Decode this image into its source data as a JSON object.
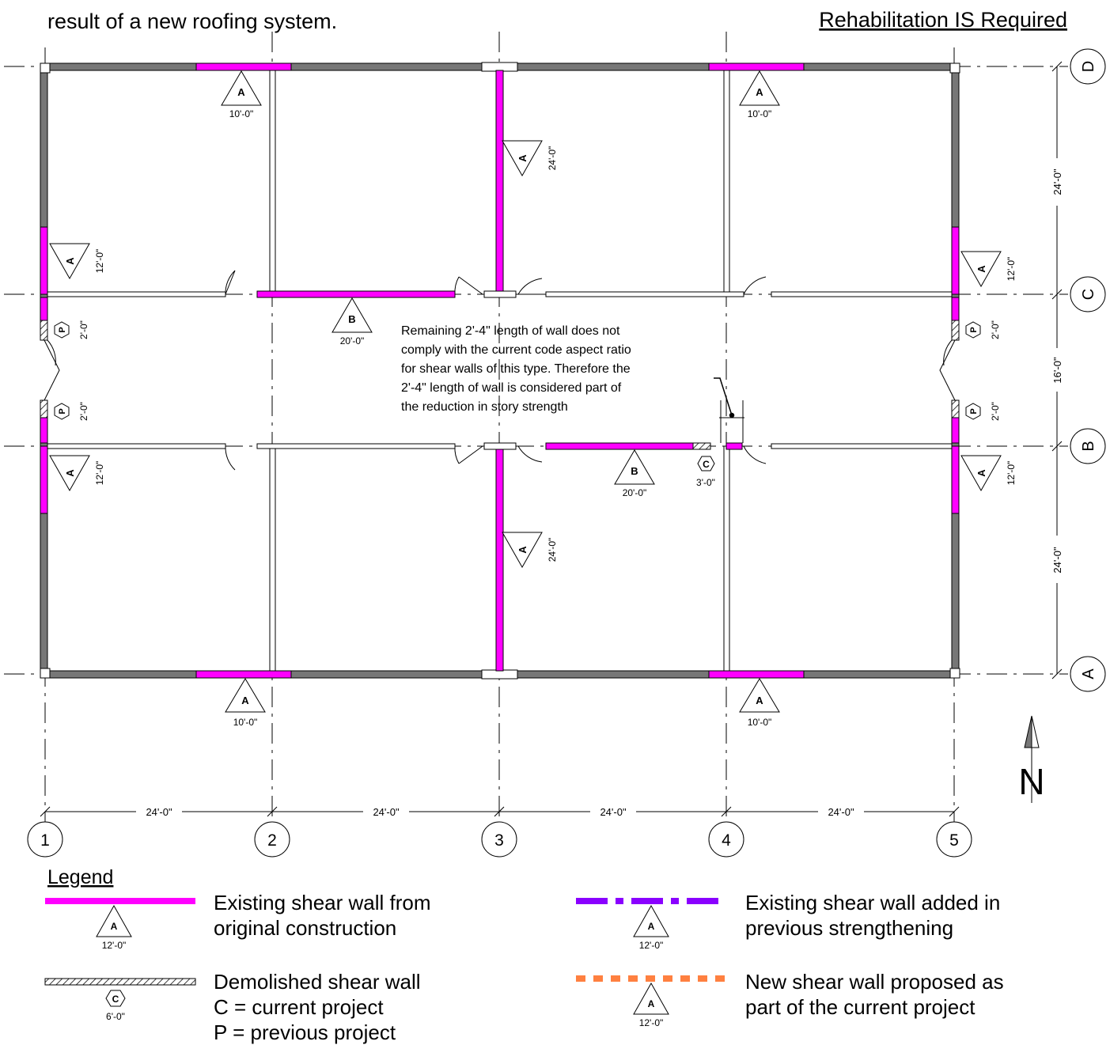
{
  "header": {
    "intro_line": "result of a new roofing system.",
    "status": "Rehabilitation IS Required"
  },
  "grid": {
    "columns": [
      "1",
      "2",
      "3",
      "4",
      "5"
    ],
    "rows": [
      "D",
      "C",
      "B",
      "A"
    ],
    "bay_dims": [
      "24'-0\"",
      "24'-0\"",
      "24'-0\"",
      "24'-0\""
    ],
    "row_dims": [
      "24'-0\"",
      "16'-0\"",
      "24'-0\""
    ]
  },
  "walls": {
    "north_2": {
      "tag": "A",
      "length": "10'-0\""
    },
    "north_4": {
      "tag": "A",
      "length": "10'-0\""
    },
    "south_2": {
      "tag": "A",
      "length": "10'-0\""
    },
    "south_4": {
      "tag": "A",
      "length": "10'-0\""
    },
    "interior_3_top": {
      "tag": "A",
      "length": "24'-0\""
    },
    "interior_3_bottom": {
      "tag": "A",
      "length": "24'-0\""
    },
    "west_top": {
      "tag": "A",
      "length": "12'-0\""
    },
    "west_bottom": {
      "tag": "A",
      "length": "12'-0\""
    },
    "east_top": {
      "tag": "A",
      "length": "12'-0\""
    },
    "east_bottom": {
      "tag": "A",
      "length": "12'-0\""
    },
    "corridor_c": {
      "tag": "B",
      "length": "20'-0\""
    },
    "corridor_b": {
      "tag": "B",
      "length": "20'-0\""
    },
    "demolished_c": {
      "tag": "C",
      "length": "3'-0\""
    },
    "west_p_top": {
      "tag": "P",
      "length": "2'-0\""
    },
    "west_p_bottom": {
      "tag": "P",
      "length": "2'-0\""
    },
    "east_p_top": {
      "tag": "P",
      "length": "2'-0\""
    },
    "east_p_bottom": {
      "tag": "P",
      "length": "2'-0\""
    }
  },
  "note": {
    "lines": [
      "Remaining 2'-4\" length of wall does not",
      "comply with the current code aspect ratio",
      "for shear walls of this type. Therefore the",
      "2'-4\" length of wall is considered part of",
      "the reduction in story strength"
    ]
  },
  "north_arrow": {
    "letter": "N"
  },
  "legend": {
    "title": "Legend",
    "items": [
      {
        "tag": "A",
        "length": "12'-0\"",
        "line1": "Existing shear wall from",
        "line2": "original construction",
        "color": "#ff00ff"
      },
      {
        "tag": "A",
        "length": "12'-0\"",
        "line1": "Existing shear wall added in",
        "line2": "previous strengthening",
        "color": "#8a00ff"
      },
      {
        "tag": "C",
        "length": "6'-0\"",
        "line1": "Demolished shear wall",
        "line2": "C = current project",
        "line3": "P = previous project",
        "color": "#555555"
      },
      {
        "tag": "A",
        "length": "12'-0\"",
        "line1": "New shear wall proposed as",
        "line2": "part of the current project",
        "color": "#ff8040"
      }
    ]
  },
  "colors": {
    "shear_wall": "#ff00ff",
    "wall_gray": "#777777",
    "added_wall": "#8a00ff",
    "proposed_wall": "#ff8040"
  }
}
